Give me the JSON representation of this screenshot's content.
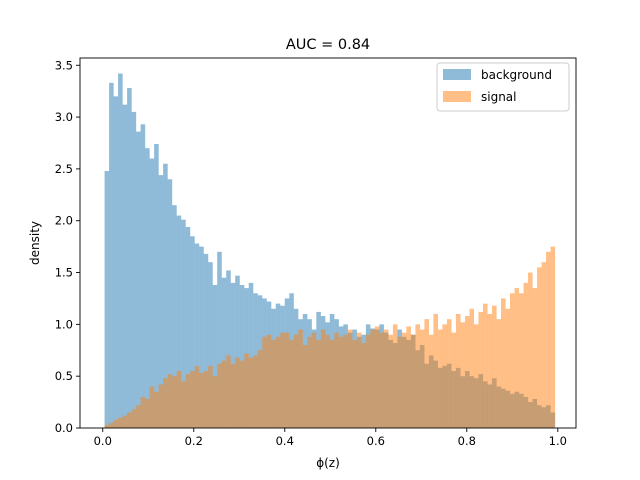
{
  "chart_data": {
    "type": "histogram",
    "title": "AUC = 0.84",
    "xlabel": "ϕ(z)",
    "ylabel": "density",
    "xlim": [
      -0.05,
      1.04
    ],
    "ylim": [
      0,
      3.57
    ],
    "xticks": [
      {
        "value": 0.0,
        "label": "0.0"
      },
      {
        "value": 0.2,
        "label": "0.2"
      },
      {
        "value": 0.4,
        "label": "0.4"
      },
      {
        "value": 0.6,
        "label": "0.6"
      },
      {
        "value": 0.8,
        "label": "0.8"
      },
      {
        "value": 1.0,
        "label": "1.0"
      }
    ],
    "yticks": [
      {
        "value": 0.0,
        "label": "0.0"
      },
      {
        "value": 0.5,
        "label": "0.5"
      },
      {
        "value": 1.0,
        "label": "1.0"
      },
      {
        "value": 1.5,
        "label": "1.5"
      },
      {
        "value": 2.0,
        "label": "2.0"
      },
      {
        "value": 2.5,
        "label": "2.5"
      },
      {
        "value": 3.0,
        "label": "3.0"
      },
      {
        "value": 3.5,
        "label": "3.5"
      }
    ],
    "bins": {
      "start": 0.004,
      "end": 0.994,
      "count": 100
    },
    "grid": false,
    "legend_position": "top-right",
    "series": [
      {
        "name": "background",
        "color": "#1f77b4",
        "alpha": 0.5,
        "values": [
          2.48,
          3.33,
          3.2,
          3.42,
          3.12,
          3.28,
          3.05,
          2.86,
          2.93,
          2.7,
          2.6,
          2.74,
          2.44,
          2.55,
          2.4,
          2.15,
          2.05,
          2.01,
          1.94,
          1.85,
          1.78,
          1.75,
          1.68,
          1.6,
          1.38,
          1.7,
          1.45,
          1.52,
          1.4,
          1.47,
          1.38,
          1.35,
          1.4,
          1.3,
          1.28,
          1.25,
          1.22,
          1.15,
          1.2,
          1.18,
          1.25,
          1.3,
          1.15,
          1.05,
          1.1,
          1.05,
          0.95,
          1.12,
          1.08,
          1.02,
          1.1,
          1.05,
          0.98,
          1.0,
          0.92,
          0.95,
          0.88,
          0.9,
          1.0,
          0.96,
          0.95,
          1.0,
          0.92,
          0.85,
          0.82,
          0.95,
          0.88,
          0.85,
          0.9,
          0.75,
          0.8,
          0.62,
          0.7,
          0.65,
          0.58,
          0.6,
          0.62,
          0.55,
          0.58,
          0.5,
          0.55,
          0.5,
          0.48,
          0.52,
          0.45,
          0.42,
          0.48,
          0.4,
          0.38,
          0.36,
          0.33,
          0.35,
          0.33,
          0.3,
          0.25,
          0.28,
          0.22,
          0.2,
          0.22,
          0.15
        ]
      },
      {
        "name": "signal",
        "color": "#ff7f0e",
        "alpha": 0.5,
        "values": [
          0.03,
          0.05,
          0.08,
          0.1,
          0.12,
          0.15,
          0.18,
          0.22,
          0.3,
          0.28,
          0.4,
          0.35,
          0.42,
          0.48,
          0.52,
          0.5,
          0.55,
          0.45,
          0.52,
          0.55,
          0.6,
          0.53,
          0.55,
          0.6,
          0.5,
          0.62,
          0.65,
          0.7,
          0.62,
          0.68,
          0.65,
          0.72,
          0.68,
          0.7,
          0.75,
          0.88,
          0.9,
          0.85,
          0.88,
          0.92,
          0.92,
          0.85,
          0.9,
          0.95,
          0.8,
          0.88,
          0.92,
          0.85,
          0.95,
          0.9,
          0.85,
          0.92,
          0.88,
          0.9,
          0.95,
          0.85,
          0.92,
          0.82,
          0.9,
          0.95,
          0.98,
          0.92,
          0.95,
          0.9,
          1.0,
          0.88,
          0.92,
          0.98,
          0.9,
          1.0,
          0.95,
          1.05,
          0.9,
          1.1,
          0.95,
          1.0,
          1.05,
          0.92,
          1.1,
          1.02,
          1.08,
          1.15,
          1.0,
          1.12,
          1.2,
          1.1,
          1.18,
          1.05,
          1.25,
          1.15,
          1.3,
          1.35,
          1.3,
          1.4,
          1.5,
          1.35,
          1.55,
          1.6,
          1.7,
          1.75
        ]
      }
    ]
  }
}
